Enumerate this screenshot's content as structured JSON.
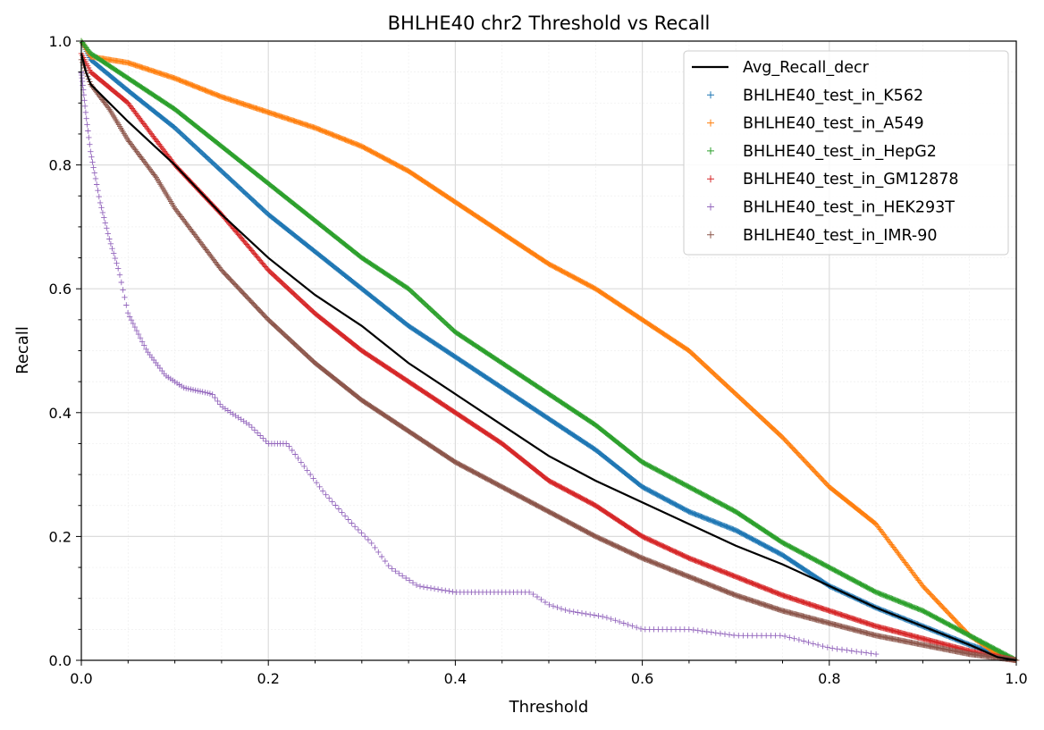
{
  "chart_data": {
    "type": "scatter",
    "title": "BHLHE40 chr2 Threshold vs Recall",
    "xlabel": "Threshold",
    "ylabel": "Recall",
    "xlim": [
      0,
      1
    ],
    "ylim": [
      0,
      1
    ],
    "x_ticks": [
      "0.0",
      "0.2",
      "0.4",
      "0.6",
      "0.8",
      "1.0"
    ],
    "y_ticks": [
      "0.0",
      "0.2",
      "0.4",
      "0.6",
      "0.8",
      "1.0"
    ],
    "grid": "major and minor",
    "legend_position": "top-right",
    "series": [
      {
        "name": "Avg_Recall_decr",
        "kind": "line",
        "color": "#000000",
        "x": [
          0,
          0.005,
          0.01,
          0.03,
          0.05,
          0.1,
          0.15,
          0.2,
          0.25,
          0.3,
          0.35,
          0.4,
          0.45,
          0.5,
          0.55,
          0.6,
          0.65,
          0.7,
          0.75,
          0.8,
          0.85,
          0.9,
          0.95,
          0.98,
          1.0
        ],
        "y": [
          0.98,
          0.95,
          0.93,
          0.9,
          0.87,
          0.8,
          0.72,
          0.65,
          0.59,
          0.54,
          0.48,
          0.43,
          0.38,
          0.33,
          0.29,
          0.255,
          0.22,
          0.185,
          0.155,
          0.12,
          0.085,
          0.055,
          0.025,
          0.005,
          0.0
        ]
      },
      {
        "name": "BHLHE40_test_in_K562",
        "kind": "scatter",
        "color": "#1f77b4",
        "x": [
          0,
          0.01,
          0.05,
          0.1,
          0.15,
          0.2,
          0.25,
          0.3,
          0.35,
          0.4,
          0.45,
          0.5,
          0.55,
          0.6,
          0.65,
          0.7,
          0.75,
          0.8,
          0.85,
          0.9,
          0.95,
          1.0
        ],
        "y": [
          1.0,
          0.97,
          0.92,
          0.86,
          0.79,
          0.72,
          0.66,
          0.6,
          0.54,
          0.49,
          0.44,
          0.39,
          0.34,
          0.28,
          0.24,
          0.21,
          0.17,
          0.12,
          0.085,
          0.055,
          0.025,
          0.0
        ]
      },
      {
        "name": "BHLHE40_test_in_A549",
        "kind": "scatter",
        "color": "#ff7f0e",
        "x": [
          0,
          0.01,
          0.05,
          0.1,
          0.15,
          0.2,
          0.25,
          0.3,
          0.35,
          0.4,
          0.45,
          0.5,
          0.55,
          0.6,
          0.65,
          0.7,
          0.75,
          0.8,
          0.85,
          0.9,
          0.95,
          0.98,
          1.0
        ],
        "y": [
          1.0,
          0.975,
          0.965,
          0.94,
          0.91,
          0.885,
          0.86,
          0.83,
          0.79,
          0.74,
          0.69,
          0.64,
          0.6,
          0.55,
          0.5,
          0.43,
          0.36,
          0.28,
          0.22,
          0.12,
          0.04,
          0.01,
          0.0
        ]
      },
      {
        "name": "BHLHE40_test_in_HepG2",
        "kind": "scatter",
        "color": "#2ca02c",
        "x": [
          0,
          0.01,
          0.05,
          0.1,
          0.15,
          0.2,
          0.25,
          0.3,
          0.35,
          0.4,
          0.45,
          0.5,
          0.55,
          0.6,
          0.65,
          0.7,
          0.75,
          0.8,
          0.85,
          0.9,
          0.95,
          1.0
        ],
        "y": [
          1.0,
          0.98,
          0.94,
          0.89,
          0.83,
          0.77,
          0.71,
          0.65,
          0.6,
          0.53,
          0.48,
          0.43,
          0.38,
          0.32,
          0.28,
          0.24,
          0.19,
          0.15,
          0.11,
          0.08,
          0.04,
          0.0
        ]
      },
      {
        "name": "BHLHE40_test_in_GM12878",
        "kind": "scatter",
        "color": "#d62728",
        "x": [
          0,
          0.01,
          0.05,
          0.1,
          0.15,
          0.2,
          0.25,
          0.3,
          0.35,
          0.4,
          0.45,
          0.5,
          0.55,
          0.6,
          0.65,
          0.7,
          0.75,
          0.8,
          0.85,
          0.9,
          0.95,
          1.0
        ],
        "y": [
          0.98,
          0.95,
          0.9,
          0.8,
          0.72,
          0.63,
          0.56,
          0.5,
          0.45,
          0.4,
          0.35,
          0.29,
          0.25,
          0.2,
          0.165,
          0.135,
          0.105,
          0.08,
          0.055,
          0.035,
          0.015,
          0.0
        ]
      },
      {
        "name": "BHLHE40_test_in_HEK293T",
        "kind": "scatter",
        "color": "#9467bd",
        "x": [
          0,
          0.005,
          0.01,
          0.02,
          0.03,
          0.04,
          0.05,
          0.07,
          0.09,
          0.11,
          0.14,
          0.15,
          0.18,
          0.2,
          0.22,
          0.24,
          0.26,
          0.29,
          0.31,
          0.33,
          0.36,
          0.4,
          0.45,
          0.48,
          0.5,
          0.52,
          0.56,
          0.6,
          0.65,
          0.7,
          0.75,
          0.8,
          0.85
        ],
        "y": [
          0.95,
          0.88,
          0.82,
          0.74,
          0.68,
          0.63,
          0.56,
          0.5,
          0.46,
          0.44,
          0.43,
          0.41,
          0.38,
          0.35,
          0.35,
          0.31,
          0.27,
          0.22,
          0.19,
          0.15,
          0.12,
          0.11,
          0.11,
          0.11,
          0.09,
          0.08,
          0.07,
          0.05,
          0.05,
          0.04,
          0.04,
          0.02,
          0.01
        ]
      },
      {
        "name": "BHLHE40_test_in_IMR-90",
        "kind": "scatter",
        "color": "#8c564b",
        "x": [
          0,
          0.01,
          0.03,
          0.05,
          0.08,
          0.1,
          0.15,
          0.2,
          0.25,
          0.3,
          0.35,
          0.4,
          0.45,
          0.5,
          0.55,
          0.6,
          0.65,
          0.7,
          0.75,
          0.8,
          0.85,
          0.9,
          0.95,
          1.0
        ],
        "y": [
          0.97,
          0.93,
          0.89,
          0.84,
          0.78,
          0.73,
          0.63,
          0.55,
          0.48,
          0.42,
          0.37,
          0.32,
          0.28,
          0.24,
          0.2,
          0.165,
          0.135,
          0.105,
          0.08,
          0.06,
          0.04,
          0.025,
          0.01,
          0.0
        ]
      }
    ]
  }
}
